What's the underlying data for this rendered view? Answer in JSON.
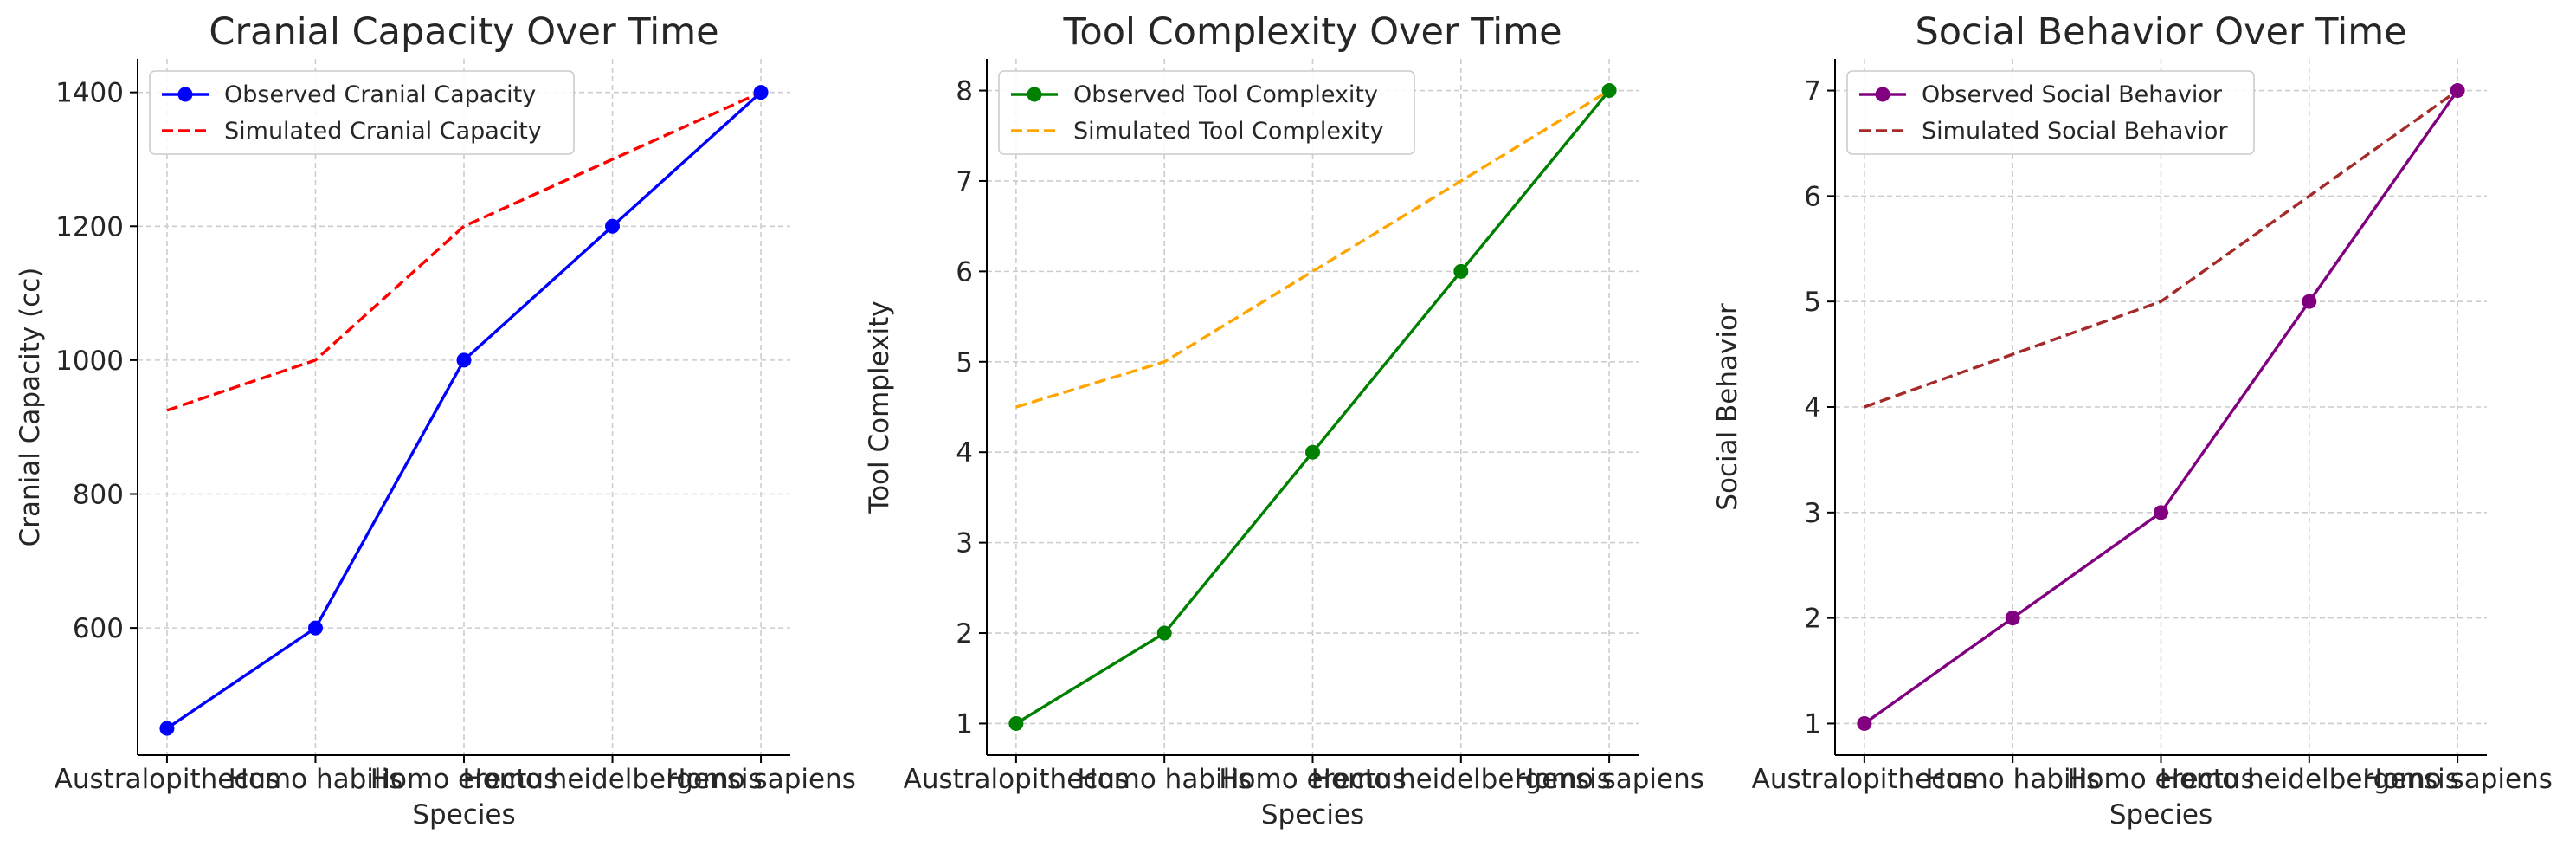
{
  "chart_data": [
    {
      "type": "line",
      "title": "Cranial Capacity Over Time",
      "xlabel": "Species",
      "ylabel": "Cranial Capacity (cc)",
      "categories": [
        "Australopithecus",
        "Homo habilis",
        "Homo erectus",
        "Homo heidelbergensis",
        "Homo sapiens"
      ],
      "ylim": [
        410,
        1450
      ],
      "yticks": [
        600,
        800,
        1000,
        1200,
        1400
      ],
      "grid": true,
      "legend": "top-left",
      "series": [
        {
          "name": "Observed Cranial Capacity",
          "values": [
            450,
            600,
            1000,
            1200,
            1400
          ],
          "color": "#0000ff",
          "style": "solid",
          "marker": true
        },
        {
          "name": "Simulated Cranial Capacity",
          "values": [
            925,
            1000,
            1200,
            1300,
            1400
          ],
          "color": "#ff0000",
          "style": "dashed",
          "marker": false
        }
      ]
    },
    {
      "type": "line",
      "title": "Tool Complexity Over Time",
      "xlabel": "Species",
      "ylabel": "Tool Complexity",
      "categories": [
        "Australopithecus",
        "Homo habilis",
        "Homo erectus",
        "Homo heidelbergensis",
        "Homo sapiens"
      ],
      "ylim": [
        0.65,
        8.35
      ],
      "yticks": [
        1,
        2,
        3,
        4,
        5,
        6,
        7,
        8
      ],
      "grid": true,
      "legend": "top-left",
      "series": [
        {
          "name": "Observed Tool Complexity",
          "values": [
            1,
            2,
            4,
            6,
            8
          ],
          "color": "#008000",
          "style": "solid",
          "marker": true
        },
        {
          "name": "Simulated Tool Complexity",
          "values": [
            4.5,
            5,
            6,
            7,
            8
          ],
          "color": "#ffa500",
          "style": "dashed",
          "marker": false
        }
      ]
    },
    {
      "type": "line",
      "title": "Social Behavior Over Time",
      "xlabel": "Species",
      "ylabel": "Social Behavior",
      "categories": [
        "Australopithecus",
        "Homo habilis",
        "Homo erectus",
        "Homo heidelbergensis",
        "Homo sapiens"
      ],
      "ylim": [
        0.7,
        7.3
      ],
      "yticks": [
        1,
        2,
        3,
        4,
        5,
        6,
        7
      ],
      "grid": true,
      "legend": "top-left",
      "series": [
        {
          "name": "Observed Social Behavior",
          "values": [
            1,
            2,
            3,
            5,
            7
          ],
          "color": "#800080",
          "style": "solid",
          "marker": true
        },
        {
          "name": "Simulated Social Behavior",
          "values": [
            4,
            4.5,
            5,
            6,
            7
          ],
          "color": "#a52a2a",
          "style": "dashed",
          "marker": false
        }
      ]
    }
  ]
}
